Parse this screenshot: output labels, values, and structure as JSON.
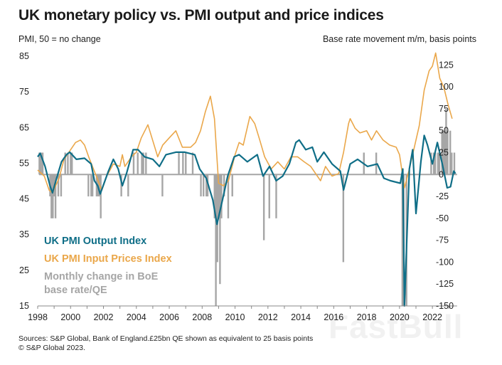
{
  "header": {
    "title": "UK monetary policy vs. PMI output and price indices",
    "left_axis_label": "PMI, 50 = no change",
    "right_axis_label": "Base rate movement m/m, basis points"
  },
  "footer": {
    "sources": "Sources: S&P Global, Bank of England.£25bn QE shown as equivalent to 25 basis points",
    "copyright": "© S&P Global 2023."
  },
  "watermark": "FastBull",
  "chart_data": {
    "type": "line",
    "title": "UK monetary policy vs. PMI output and price indices",
    "ylabel": "PMI, 50 = no change",
    "y2label": "Base rate movement m/m, basis points",
    "xlim": [
      1998,
      2023.5
    ],
    "ylim": [
      15,
      85
    ],
    "y2lim": [
      -150,
      135
    ],
    "x_ticks": [
      "1998",
      "2000",
      "2002",
      "2004",
      "2006",
      "2008",
      "2010",
      "2012",
      "2014",
      "2016",
      "2018",
      "2020",
      "2022"
    ],
    "y_ticks": [
      "85",
      "75",
      "65",
      "55",
      "45",
      "35",
      "25",
      "15"
    ],
    "y2_ticks": [
      "125",
      "100",
      "75",
      "50",
      "25",
      "0",
      "-25",
      "-50",
      "-75",
      "-100",
      "-125",
      "-150"
    ],
    "grid": false,
    "legend_placement": "bottom-left",
    "colors": {
      "output": "#0f6e87",
      "input_prices": "#eaa74a",
      "bars": "#a6a6a6",
      "zero_line": "#a6a6a6"
    },
    "series": [
      {
        "name": "UK PMI Output Index",
        "kind": "line",
        "axis": "left",
        "points": [
          [
            1998.0,
            56.8
          ],
          [
            1998.15,
            57.8
          ],
          [
            1998.45,
            54.1
          ],
          [
            1998.75,
            48.7
          ],
          [
            1998.9,
            46.7
          ],
          [
            1999.15,
            50.8
          ],
          [
            1999.45,
            55.4
          ],
          [
            1999.75,
            57.4
          ],
          [
            1999.95,
            58.1
          ],
          [
            2000.35,
            56.1
          ],
          [
            2000.85,
            56.4
          ],
          [
            2001.25,
            54.8
          ],
          [
            2001.45,
            50.1
          ],
          [
            2001.65,
            48.7
          ],
          [
            2001.8,
            46.4
          ],
          [
            2002.3,
            52.8
          ],
          [
            2002.6,
            56.1
          ],
          [
            2002.9,
            53.4
          ],
          [
            2003.15,
            48.7
          ],
          [
            2003.4,
            52.1
          ],
          [
            2003.8,
            58.8
          ],
          [
            2004.1,
            58.8
          ],
          [
            2004.5,
            56.8
          ],
          [
            2005.0,
            56.1
          ],
          [
            2005.4,
            54.1
          ],
          [
            2005.8,
            57.4
          ],
          [
            2006.4,
            58.1
          ],
          [
            2006.95,
            58.1
          ],
          [
            2007.55,
            57.4
          ],
          [
            2007.85,
            53.4
          ],
          [
            2008.25,
            50.8
          ],
          [
            2008.65,
            44.7
          ],
          [
            2008.9,
            37.9
          ],
          [
            2009.25,
            45.0
          ],
          [
            2009.55,
            51.4
          ],
          [
            2009.95,
            56.8
          ],
          [
            2010.25,
            57.4
          ],
          [
            2010.75,
            55.4
          ],
          [
            2011.35,
            57.4
          ],
          [
            2011.7,
            51.4
          ],
          [
            2012.1,
            54.1
          ],
          [
            2012.5,
            50.1
          ],
          [
            2012.9,
            51.4
          ],
          [
            2013.3,
            54.8
          ],
          [
            2013.7,
            60.8
          ],
          [
            2013.9,
            61.5
          ],
          [
            2014.3,
            58.8
          ],
          [
            2014.7,
            59.5
          ],
          [
            2015.0,
            55.4
          ],
          [
            2015.4,
            58.1
          ],
          [
            2015.9,
            54.8
          ],
          [
            2016.4,
            52.8
          ],
          [
            2016.6,
            47.5
          ],
          [
            2017.0,
            54.8
          ],
          [
            2017.45,
            56.1
          ],
          [
            2018.05,
            54.1
          ],
          [
            2018.65,
            54.8
          ],
          [
            2019.05,
            50.8
          ],
          [
            2019.45,
            50.1
          ],
          [
            2020.05,
            49.4
          ],
          [
            2020.2,
            53.4
          ],
          [
            2020.3,
            13.8
          ],
          [
            2020.6,
            53.4
          ],
          [
            2020.8,
            58.8
          ],
          [
            2021.0,
            40.9
          ],
          [
            2021.3,
            55.4
          ],
          [
            2021.5,
            62.8
          ],
          [
            2021.7,
            60.1
          ],
          [
            2022.0,
            54.8
          ],
          [
            2022.3,
            60.8
          ],
          [
            2022.6,
            54.8
          ],
          [
            2022.9,
            48.1
          ],
          [
            2023.1,
            48.4
          ],
          [
            2023.3,
            52.8
          ],
          [
            2023.4,
            52.1
          ]
        ]
      },
      {
        "name": "UK PMI Input Prices Index",
        "kind": "line",
        "axis": "left",
        "points": [
          [
            1998.0,
            53.1
          ],
          [
            1998.4,
            51.4
          ],
          [
            1998.7,
            47.4
          ],
          [
            1998.9,
            46.7
          ],
          [
            1999.3,
            50.8
          ],
          [
            1999.6,
            56.1
          ],
          [
            2000.0,
            58.8
          ],
          [
            2000.3,
            60.8
          ],
          [
            2000.6,
            61.5
          ],
          [
            2000.85,
            60.1
          ],
          [
            2001.1,
            56.8
          ],
          [
            2001.5,
            52.1
          ],
          [
            2001.9,
            47.4
          ],
          [
            2002.2,
            51.4
          ],
          [
            2002.6,
            54.8
          ],
          [
            2003.0,
            54.1
          ],
          [
            2003.15,
            57.4
          ],
          [
            2003.3,
            54.1
          ],
          [
            2003.7,
            56.8
          ],
          [
            2004.0,
            58.1
          ],
          [
            2004.3,
            62.1
          ],
          [
            2004.7,
            65.8
          ],
          [
            2004.9,
            62.8
          ],
          [
            2005.3,
            56.8
          ],
          [
            2005.6,
            60.1
          ],
          [
            2006.0,
            62.1
          ],
          [
            2006.4,
            64.1
          ],
          [
            2006.8,
            59.5
          ],
          [
            2007.3,
            59.5
          ],
          [
            2007.6,
            60.8
          ],
          [
            2007.9,
            64.1
          ],
          [
            2008.2,
            69.5
          ],
          [
            2008.5,
            73.8
          ],
          [
            2008.75,
            67.5
          ],
          [
            2009.0,
            49.4
          ],
          [
            2009.3,
            48.7
          ],
          [
            2009.6,
            50.1
          ],
          [
            2010.0,
            57.4
          ],
          [
            2010.25,
            60.8
          ],
          [
            2010.5,
            60.1
          ],
          [
            2010.9,
            68.1
          ],
          [
            2011.2,
            66.1
          ],
          [
            2011.5,
            61.5
          ],
          [
            2011.8,
            56.8
          ],
          [
            2012.2,
            53.4
          ],
          [
            2012.6,
            55.4
          ],
          [
            2013.0,
            53.4
          ],
          [
            2013.4,
            56.8
          ],
          [
            2013.8,
            56.8
          ],
          [
            2014.2,
            55.4
          ],
          [
            2014.6,
            54.1
          ],
          [
            2014.9,
            52.1
          ],
          [
            2015.2,
            50.1
          ],
          [
            2015.5,
            54.1
          ],
          [
            2015.9,
            51.4
          ],
          [
            2016.3,
            52.1
          ],
          [
            2016.6,
            58.1
          ],
          [
            2016.9,
            66.1
          ],
          [
            2017.0,
            67.5
          ],
          [
            2017.3,
            64.8
          ],
          [
            2017.6,
            63.5
          ],
          [
            2018.0,
            64.1
          ],
          [
            2018.3,
            61.5
          ],
          [
            2018.6,
            64.1
          ],
          [
            2019.0,
            61.5
          ],
          [
            2019.4,
            60.1
          ],
          [
            2019.8,
            59.5
          ],
          [
            2020.0,
            57.4
          ],
          [
            2020.3,
            48.1
          ],
          [
            2020.6,
            53.4
          ],
          [
            2020.9,
            59.5
          ],
          [
            2021.2,
            65.5
          ],
          [
            2021.5,
            75.5
          ],
          [
            2021.8,
            80.9
          ],
          [
            2022.0,
            82.2
          ],
          [
            2022.2,
            85.9
          ],
          [
            2022.45,
            78.8
          ],
          [
            2022.7,
            76.2
          ],
          [
            2022.95,
            71.5
          ],
          [
            2023.2,
            67.5
          ]
        ]
      },
      {
        "name": "Monthly change in BoE base rate/QE",
        "kind": "bar",
        "axis": "right",
        "points": [
          [
            1998.1,
            25
          ],
          [
            1998.2,
            25
          ],
          [
            1998.3,
            25
          ],
          [
            1998.75,
            -25
          ],
          [
            1998.83,
            -50
          ],
          [
            1998.92,
            -50
          ],
          [
            1999.0,
            -25
          ],
          [
            1999.08,
            -50
          ],
          [
            1999.25,
            -25
          ],
          [
            1999.42,
            -25
          ],
          [
            1999.67,
            25
          ],
          [
            1999.83,
            25
          ],
          [
            2000.0,
            25
          ],
          [
            2000.08,
            25
          ],
          [
            2001.08,
            -25
          ],
          [
            2001.25,
            -25
          ],
          [
            2001.33,
            -25
          ],
          [
            2001.58,
            -25
          ],
          [
            2001.67,
            -25
          ],
          [
            2001.75,
            -25
          ],
          [
            2001.83,
            -50
          ],
          [
            2003.08,
            -25
          ],
          [
            2003.5,
            -25
          ],
          [
            2003.83,
            25
          ],
          [
            2004.08,
            25
          ],
          [
            2004.33,
            25
          ],
          [
            2004.42,
            25
          ],
          [
            2004.58,
            25
          ],
          [
            2005.58,
            -25
          ],
          [
            2006.58,
            25
          ],
          [
            2006.83,
            25
          ],
          [
            2007.0,
            25
          ],
          [
            2007.42,
            25
          ],
          [
            2007.92,
            -25
          ],
          [
            2008.08,
            -25
          ],
          [
            2008.25,
            -25
          ],
          [
            2008.33,
            -25
          ],
          [
            2008.75,
            -50
          ],
          [
            2008.83,
            -150
          ],
          [
            2008.92,
            -100
          ],
          [
            2009.0,
            -50
          ],
          [
            2009.08,
            -125
          ],
          [
            2009.17,
            -50
          ],
          [
            2009.33,
            -25
          ],
          [
            2009.58,
            -50
          ],
          [
            2009.83,
            -25
          ],
          [
            2011.75,
            -75
          ],
          [
            2012.08,
            -50
          ],
          [
            2012.5,
            -50
          ],
          [
            2016.58,
            -100
          ],
          [
            2017.83,
            25
          ],
          [
            2018.58,
            25
          ],
          [
            2020.17,
            -150
          ],
          [
            2020.25,
            -150
          ],
          [
            2020.42,
            -150
          ],
          [
            2021.92,
            25
          ],
          [
            2022.08,
            25
          ],
          [
            2022.17,
            25
          ],
          [
            2022.33,
            25
          ],
          [
            2022.42,
            25
          ],
          [
            2022.58,
            50
          ],
          [
            2022.67,
            50
          ],
          [
            2022.75,
            50
          ],
          [
            2022.83,
            75
          ],
          [
            2022.92,
            50
          ],
          [
            2023.08,
            50
          ],
          [
            2023.17,
            25
          ],
          [
            2023.33,
            25
          ]
        ]
      }
    ],
    "legend": [
      {
        "label": "UK PMI Output Index",
        "color": "#0f6e87"
      },
      {
        "label": "UK PMI Input Prices Index",
        "color": "#eaa74a"
      },
      {
        "label": "Monthly change in BoE",
        "label2": "base rate/QE",
        "color": "#a6a6a6"
      }
    ]
  }
}
